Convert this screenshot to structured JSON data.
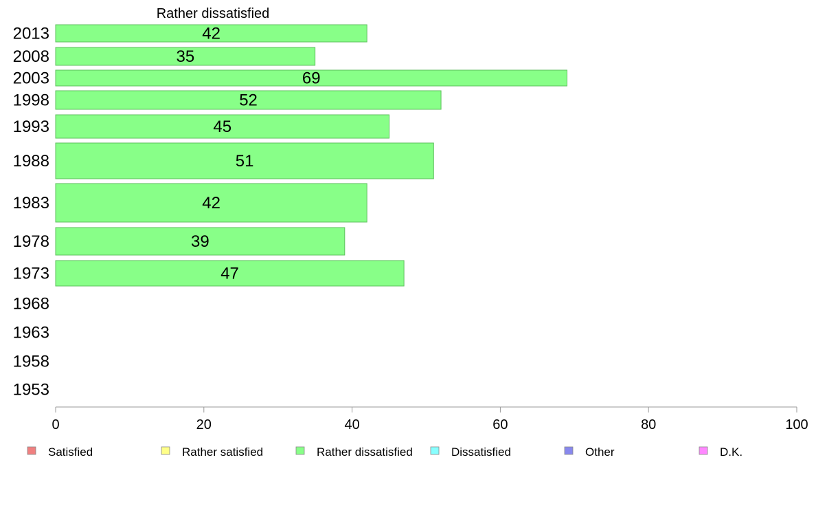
{
  "chart_data": {
    "type": "bar",
    "orientation": "horizontal",
    "title": "Rather dissatisfied",
    "categories": [
      "2013",
      "2008",
      "2003",
      "1998",
      "1993",
      "1988",
      "1983",
      "1978",
      "1973",
      "1968",
      "1963",
      "1958",
      "1953"
    ],
    "values": [
      42,
      35,
      69,
      52,
      45,
      51,
      42,
      39,
      47,
      null,
      null,
      null,
      null
    ],
    "xlim": [
      0,
      100
    ],
    "xticks": [
      0,
      20,
      40,
      60,
      80,
      100
    ],
    "bar_color": "#88ff88",
    "bar_border": "#5cbf5c",
    "grid": false,
    "legend_position": "bottom",
    "legend": [
      {
        "label": "Satisfied",
        "color": "#f08080"
      },
      {
        "label": "Rather satisfied",
        "color": "#ffff88"
      },
      {
        "label": "Rather dissatisfied",
        "color": "#88ff88"
      },
      {
        "label": "Dissatisfied",
        "color": "#88ffff"
      },
      {
        "label": "Other",
        "color": "#8888ee"
      },
      {
        "label": "D.K.",
        "color": "#ff88ff"
      }
    ]
  }
}
